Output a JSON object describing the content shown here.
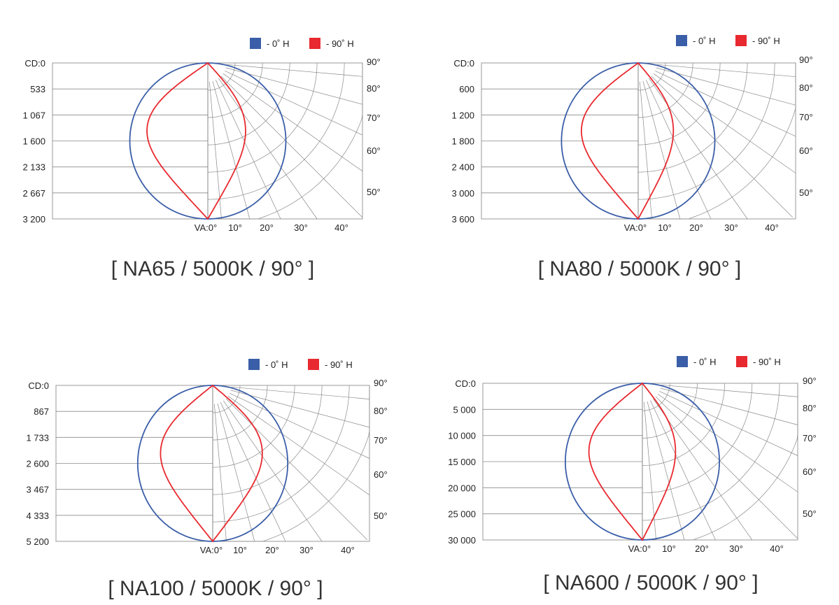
{
  "chart_data": [
    {
      "type": "polar",
      "caption": "[ NA65 / 5000K / 90° ]",
      "cd_label_prefix": "CD:",
      "cd_ticks": [
        "CD:0",
        "533",
        "1 067",
        "1 600",
        "2 133",
        "2 667",
        "3 200"
      ],
      "cd_max": 3200,
      "va_ticks": [
        "VA:0°",
        "10°",
        "20°",
        "30°",
        "40°"
      ],
      "right_ticks": [
        "90°",
        "80°",
        "70°",
        "60°",
        "50°"
      ],
      "legend": [
        {
          "label": "- 0˚ H",
          "color": "#3a5ea8"
        },
        {
          "label": "- 90˚ H",
          "color": "#e8292f"
        }
      ],
      "series": [
        {
          "name": "- 0˚ H",
          "color": "#3a5ea8",
          "shape": "circle",
          "diameter_cd": 3200,
          "width_cd": 3200
        },
        {
          "name": "- 90˚ H",
          "color": "#e8292f",
          "shape": "lobe",
          "half_width_cd": 1220,
          "asymmetry": 0.62
        }
      ]
    },
    {
      "type": "polar",
      "caption": "[ NA80 / 5000K / 90° ]",
      "cd_ticks": [
        "CD:0",
        "600",
        "1 200",
        "1 800",
        "2 400",
        "3 000",
        "3 600"
      ],
      "cd_max": 3600,
      "va_ticks": [
        "VA:0°",
        "10°",
        "20°",
        "30°",
        "40°"
      ],
      "right_ticks": [
        "90°",
        "80°",
        "70°",
        "60°",
        "50°"
      ],
      "legend": [
        {
          "label": "- 0˚ H",
          "color": "#3a5ea8"
        },
        {
          "label": "- 90˚ H",
          "color": "#e8292f"
        }
      ],
      "series": [
        {
          "name": "- 0˚ H",
          "color": "#3a5ea8",
          "shape": "circle",
          "diameter_cd": 3600,
          "width_cd": 3540
        },
        {
          "name": "- 90˚ H",
          "color": "#e8292f",
          "shape": "lobe",
          "half_width_cd": 1280,
          "asymmetry": 0.62
        }
      ]
    },
    {
      "type": "polar",
      "caption": "[ NA100 / 5000K / 90° ]",
      "cd_ticks": [
        "CD:0",
        "867",
        "1 733",
        "2 600",
        "3 467",
        "4 333",
        "5 200"
      ],
      "cd_max": 5200,
      "va_ticks": [
        "VA:0°",
        "10°",
        "20°",
        "30°",
        "40°"
      ],
      "right_ticks": [
        "90°",
        "80°",
        "70°",
        "60°",
        "50°"
      ],
      "legend": [
        {
          "label": "- 0˚ H",
          "color": "#3a5ea8"
        },
        {
          "label": "- 90˚ H",
          "color": "#e8292f"
        }
      ],
      "series": [
        {
          "name": "- 0˚ H",
          "color": "#3a5ea8",
          "shape": "circle",
          "diameter_cd": 5200,
          "width_cd": 5000
        },
        {
          "name": "- 90˚ H",
          "color": "#e8292f",
          "shape": "lobe",
          "half_width_cd": 1700,
          "asymmetry": 0.95
        }
      ]
    },
    {
      "type": "polar",
      "caption": "[ NA600 / 5000K / 90° ]",
      "cd_ticks": [
        "CD:0",
        "5 000",
        "10 000",
        "15 000",
        "20 000",
        "25 000",
        "30 000"
      ],
      "cd_max": 30000,
      "va_ticks": [
        "VA:0°",
        "10°",
        "20°",
        "30°",
        "40°"
      ],
      "right_ticks": [
        "90°",
        "80°",
        "70°",
        "60°",
        "50°"
      ],
      "legend": [
        {
          "label": "- 0˚ H",
          "color": "#3a5ea8"
        },
        {
          "label": "- 90˚ H",
          "color": "#e8292f"
        }
      ],
      "series": [
        {
          "name": "- 0˚ H",
          "color": "#3a5ea8",
          "shape": "circle",
          "diameter_cd": 30000,
          "width_cd": 29500
        },
        {
          "name": "- 90˚ H",
          "color": "#e8292f",
          "shape": "lobe",
          "half_width_cd": 10000,
          "asymmetry": 0.62
        }
      ]
    }
  ]
}
